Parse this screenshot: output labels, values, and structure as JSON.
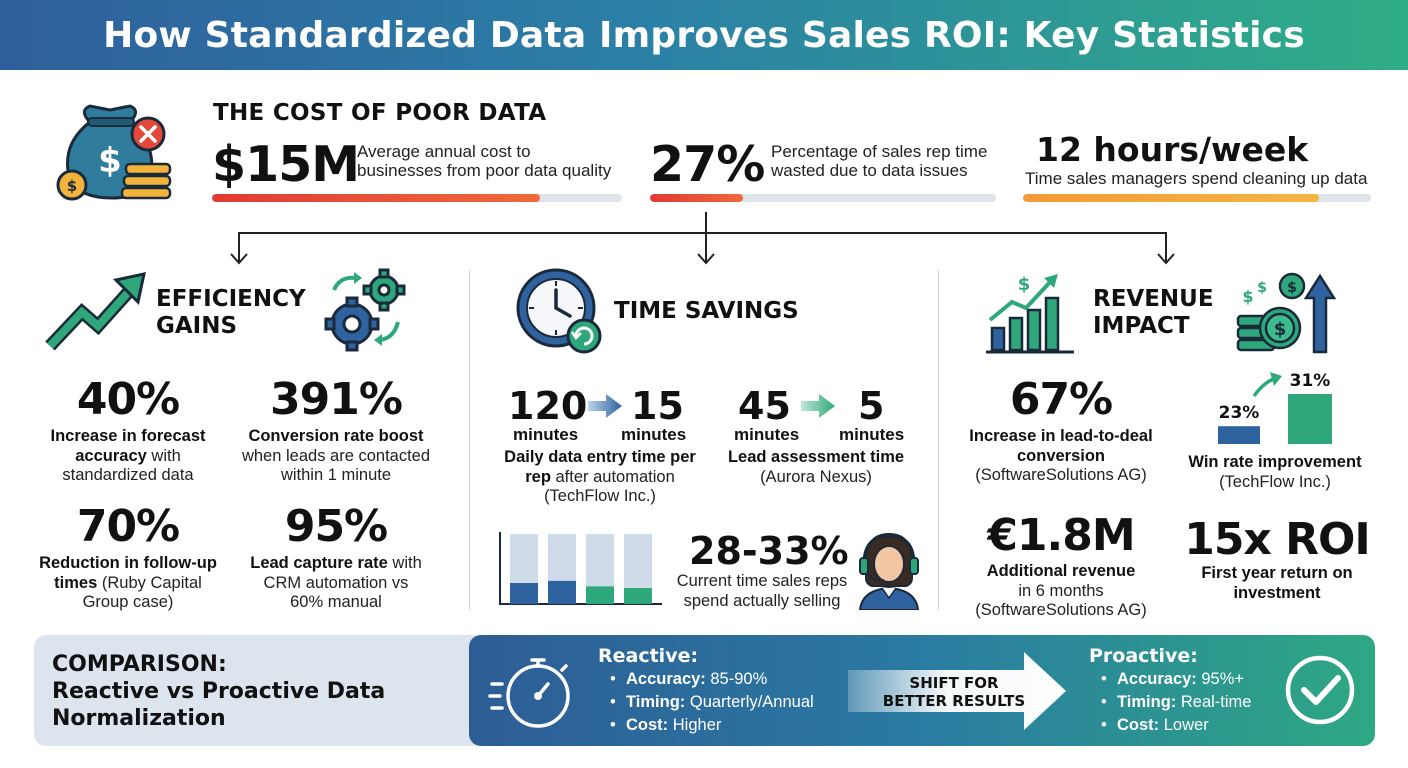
{
  "title": "How Standardized Data Improves Sales ROI: Key Statistics",
  "colors": {
    "red": "#e5483a",
    "orange": "#f2a33a",
    "blue": "#2f63a0",
    "green": "#2ea87a",
    "navy": "#1f3f66"
  },
  "cost": {
    "title": "THE COST OF POOR DATA",
    "stats": [
      {
        "value": "$15M",
        "desc_line1": "Average annual cost to",
        "desc_line2": "businesses from poor data quality",
        "bar_level": 0.8,
        "bar_color": "#e5483a"
      },
      {
        "value": "27%",
        "desc_line1": "Percentage of sales rep time",
        "desc_line2": "wasted due to data issues",
        "bar_level": 0.27,
        "bar_color": "#e5483a"
      },
      {
        "value": "12 hours/week",
        "desc": "Time sales managers spend cleaning up data",
        "bar_level": 0.85,
        "bar_color": "#f2a33a"
      }
    ]
  },
  "efficiency": {
    "title_line1": "EFFICIENCY",
    "title_line2": "GAINS",
    "stats": [
      {
        "value": "40%",
        "bold1": "Increase in forecast",
        "bold2": "accuracy",
        "rest2": " with",
        "line3": "standardized data"
      },
      {
        "value": "391%",
        "bold1": "Conversion rate boost",
        "line2": "when leads are contacted",
        "line3": "within 1 minute"
      },
      {
        "value": "70%",
        "bold1": "Reduction in follow-up",
        "bold2": "times",
        "rest2": " (Ruby Capital",
        "line3": "Group case)"
      },
      {
        "value": "95%",
        "bold1": "Lead capture rate",
        "rest1": " with",
        "line2": "CRM automation vs",
        "line3": "60% manual"
      }
    ]
  },
  "time_savings": {
    "title": "TIME SAVINGS",
    "entry": {
      "from": "120",
      "to": "15",
      "unit": "minutes",
      "bold1": "Daily data entry time per",
      "bold2": "rep",
      "rest2": " after automation",
      "line3": "(TechFlow Inc.)"
    },
    "assess": {
      "from": "45",
      "to": "5",
      "unit": "minutes",
      "bold1": "Lead assessment time",
      "line2": "(Aurora Nexus)"
    },
    "selling": {
      "value": "28-33%",
      "line1": "Current time sales reps",
      "line2": "spend actually selling"
    },
    "mini_chart": [
      0.5,
      0.55,
      0.42,
      0.38
    ]
  },
  "revenue": {
    "title_line1": "REVENUE",
    "title_line2": "IMPACT",
    "conversion": {
      "value": "67%",
      "bold1": "Increase in lead-to-deal",
      "bold2": "conversion",
      "line3": "(SoftwareSolutions AG)"
    },
    "win_rate": {
      "before": "23%",
      "after": "31%",
      "before_value": 23,
      "after_value": 31,
      "bold": "Win rate improvement",
      "line2": "(TechFlow Inc.)"
    },
    "additional": {
      "value": "€1.8M",
      "bold": "Additional revenue",
      "line2": "in 6 months",
      "line3": "(SoftwareSolutions AG)"
    },
    "roi": {
      "value": "15x ROI",
      "bold1": "First year return on",
      "bold2": "investment"
    }
  },
  "comparison": {
    "title_line1": "COMPARISON:",
    "title_line2": "Reactive vs Proactive Data",
    "title_line3": "Normalization",
    "reactive": {
      "head": "Reactive:",
      "items": [
        {
          "label": "Accuracy:",
          "value": " 85-90%"
        },
        {
          "label": "Timing:",
          "value": " Quarterly/Annual"
        },
        {
          "label": "Cost:",
          "value": " Higher"
        }
      ]
    },
    "shift_line1": "SHIFT FOR",
    "shift_line2": "BETTER RESULTS",
    "proactive": {
      "head": "Proactive:",
      "items": [
        {
          "label": "Accuracy:",
          "value": " 95%+"
        },
        {
          "label": "Timing:",
          "value": " Real-time"
        },
        {
          "label": "Cost:",
          "value": " Lower"
        }
      ]
    }
  },
  "icons": [
    "money-bag-icon",
    "upward-trend-arrow-icon",
    "gears-icon",
    "clock-icon",
    "growth-bar-chart-icon",
    "coins-arrow-icon",
    "headset-agent-icon",
    "stopwatch-icon",
    "checkmark-circle-icon"
  ]
}
